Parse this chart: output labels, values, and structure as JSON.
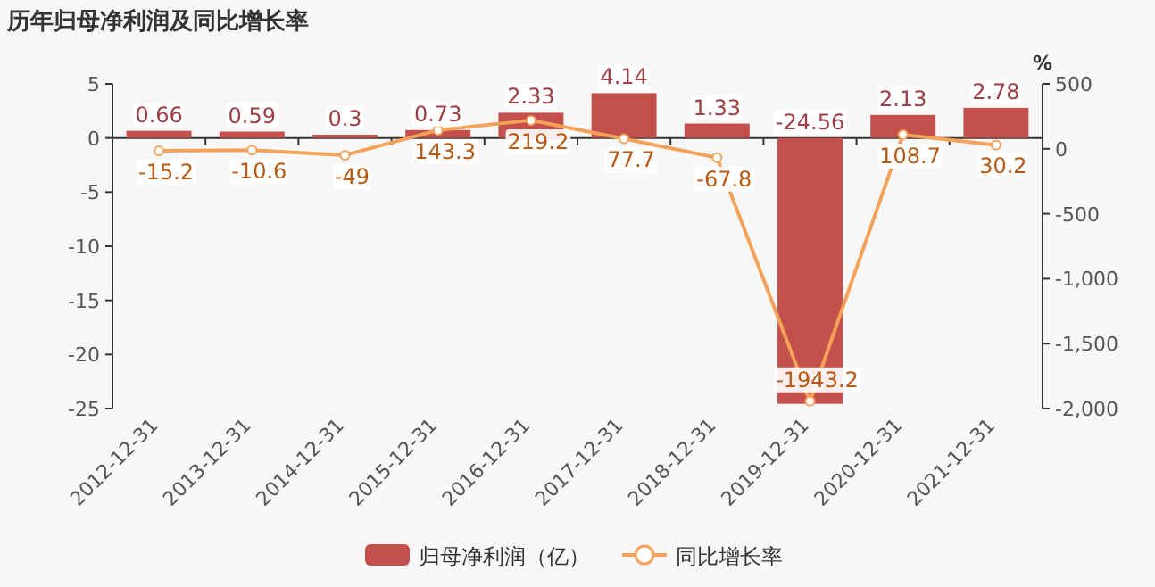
{
  "chart_data": {
    "type": "bar",
    "title": "历年归母净利润及同比增长率",
    "categories": [
      "2012-12-31",
      "2013-12-31",
      "2014-12-31",
      "2015-12-31",
      "2016-12-31",
      "2017-12-31",
      "2018-12-31",
      "2019-12-31",
      "2020-12-31",
      "2021-12-31"
    ],
    "series": [
      {
        "name": "归母净利润（亿）",
        "color": "#c4504b",
        "values": [
          0.66,
          0.59,
          0.3,
          0.73,
          2.33,
          4.14,
          1.33,
          -24.56,
          2.13,
          2.78
        ]
      },
      {
        "name": "同比增长率",
        "type": "line",
        "axis": "y2",
        "color": "#f4a15a",
        "marker": "circle",
        "values": [
          -15.2,
          -10.6,
          -49,
          143.3,
          219.2,
          77.7,
          -67.8,
          -1943.2,
          108.7,
          30.2
        ]
      }
    ],
    "ylim": [
      -25,
      5
    ],
    "yticks": [
      -25,
      -20,
      -15,
      -10,
      -5,
      0,
      5
    ],
    "y2lim": [
      -2000,
      500
    ],
    "y2ticks": [
      {
        "value": -2000,
        "label": "-2,000"
      },
      {
        "value": -1500,
        "label": "-1,500"
      },
      {
        "value": -1000,
        "label": "-1,000"
      },
      -500,
      0,
      500
    ],
    "y2label": "%",
    "legend": "bottom",
    "data_labels": true
  }
}
